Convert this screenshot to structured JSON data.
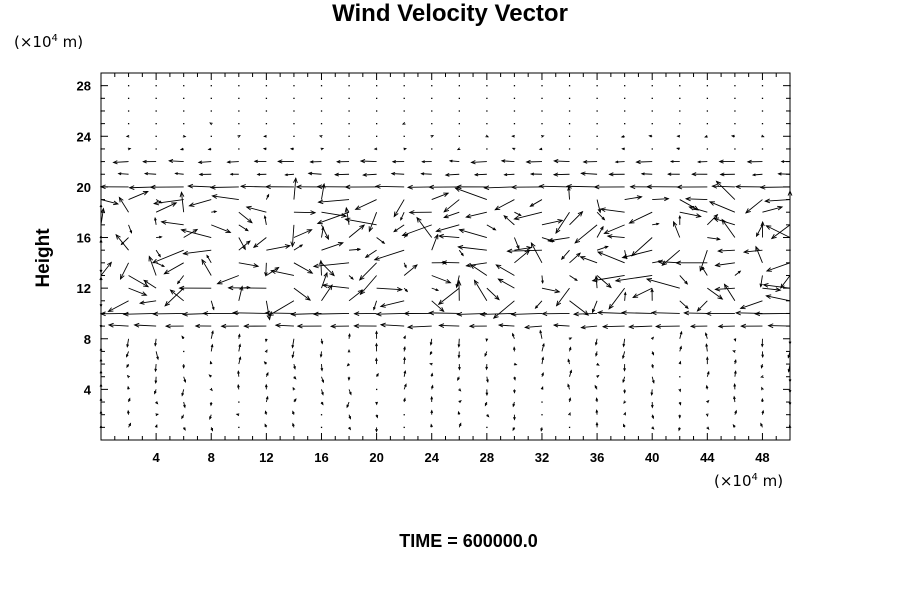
{
  "chart_data": {
    "type": "vector_field",
    "title": "Wind Velocity Vector",
    "ylabel": "Height",
    "x_unit_label": {
      "prefix": "(×10",
      "exp": "4",
      "suffix": " m)"
    },
    "y_unit_label": {
      "prefix": "(×10",
      "exp": "4",
      "suffix": " m)"
    },
    "xlim": [
      0,
      50
    ],
    "ylim": [
      0,
      29
    ],
    "x_ticks": [
      4,
      8,
      12,
      16,
      20,
      24,
      28,
      32,
      36,
      40,
      44,
      48
    ],
    "y_ticks": [
      4,
      8,
      12,
      16,
      20,
      24,
      28
    ],
    "grid": {
      "x_start": 0,
      "x_step": 2,
      "x_end": 50,
      "y_start": 1,
      "y_step": 1,
      "y_end": 28
    },
    "field_description": "small upward/downward flow near surface; strong alternating horizontal jets between heights 9 and 20, strongest westward jets near 10 and 20; disordered vectors between 11 and 19",
    "bands": [
      {
        "y_range": [
          9.5,
          10.5
        ],
        "direction": "west",
        "relative_speed": "strong"
      },
      {
        "y_range": [
          19.5,
          20.5
        ],
        "direction": "west",
        "relative_speed": "strong"
      },
      {
        "y_range": [
          11,
          19
        ],
        "direction": "mixed",
        "relative_speed": "moderate"
      }
    ]
  },
  "footer": {
    "time_label": "TIME = 600000.0"
  }
}
